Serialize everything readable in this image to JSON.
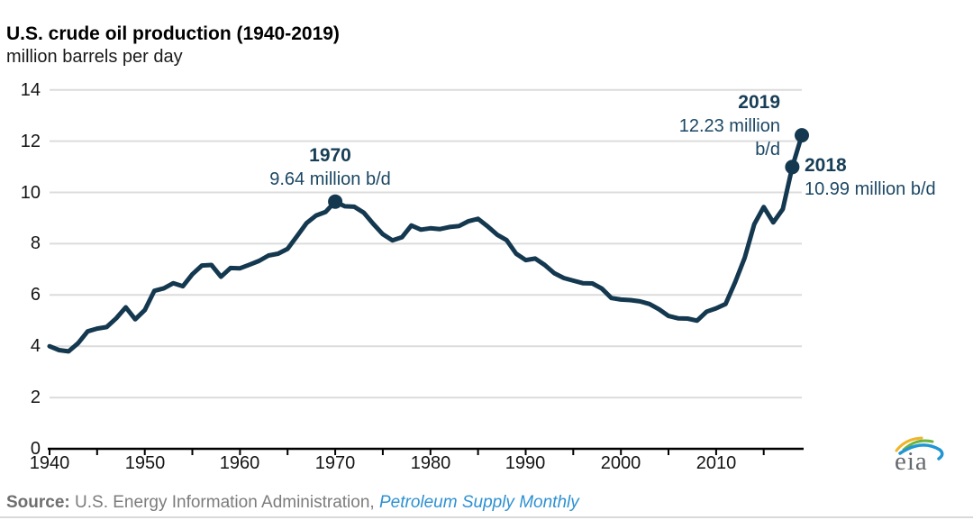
{
  "header": {
    "title": "U.S. crude oil production (1940-2019)",
    "subtitle": "million barrels per day"
  },
  "colors": {
    "line": "#14384F",
    "grid": "#dcdcdc",
    "axis": "#000000",
    "annotation_year": "#173E56",
    "annotation_value": "#1B4764",
    "source_gray": "#7c7c7c",
    "link_blue": "#2E91D2",
    "logo_yellow": "#F0B428",
    "logo_green": "#6CB33F",
    "logo_blue": "#2196D3"
  },
  "chart_data": {
    "type": "line",
    "title": "U.S. crude oil production (1940-2019)",
    "xlabel": "",
    "ylabel": "million barrels per day",
    "xlim": [
      1940,
      2019
    ],
    "ylim": [
      0,
      14
    ],
    "grid": "horizontal",
    "legend": "none",
    "y_ticks": [
      0,
      2,
      4,
      6,
      8,
      10,
      12,
      14
    ],
    "x_tick_labels": [
      1940,
      1950,
      1960,
      1970,
      1980,
      1990,
      2000,
      2010
    ],
    "x_tick_marks": [
      1940,
      1945,
      1950,
      1955,
      1960,
      1965,
      1970,
      1975,
      1980,
      1985,
      1990,
      1995,
      2000,
      2005,
      2010,
      2015
    ],
    "series_name": "U.S. crude oil production (million barrels per day)",
    "years": [
      1940,
      1941,
      1942,
      1943,
      1944,
      1945,
      1946,
      1947,
      1948,
      1949,
      1950,
      1951,
      1952,
      1953,
      1954,
      1955,
      1956,
      1957,
      1958,
      1959,
      1960,
      1961,
      1962,
      1963,
      1964,
      1965,
      1966,
      1967,
      1968,
      1969,
      1970,
      1971,
      1972,
      1973,
      1974,
      1975,
      1976,
      1977,
      1978,
      1979,
      1980,
      1981,
      1982,
      1983,
      1984,
      1985,
      1986,
      1987,
      1988,
      1989,
      1990,
      1991,
      1992,
      1993,
      1994,
      1995,
      1996,
      1997,
      1998,
      1999,
      2000,
      2001,
      2002,
      2003,
      2004,
      2005,
      2006,
      2007,
      2008,
      2009,
      2010,
      2011,
      2012,
      2013,
      2014,
      2015,
      2016,
      2017,
      2018,
      2019
    ],
    "values": [
      4.0,
      3.85,
      3.8,
      4.12,
      4.58,
      4.69,
      4.75,
      5.09,
      5.52,
      5.05,
      5.41,
      6.16,
      6.26,
      6.46,
      6.34,
      6.81,
      7.15,
      7.17,
      6.71,
      7.05,
      7.04,
      7.18,
      7.33,
      7.54,
      7.61,
      7.8,
      8.3,
      8.81,
      9.1,
      9.24,
      9.64,
      9.46,
      9.44,
      9.21,
      8.77,
      8.37,
      8.13,
      8.25,
      8.71,
      8.55,
      8.6,
      8.57,
      8.65,
      8.69,
      8.88,
      8.97,
      8.68,
      8.35,
      8.14,
      7.61,
      7.36,
      7.42,
      7.17,
      6.85,
      6.66,
      6.56,
      6.46,
      6.45,
      6.25,
      5.88,
      5.82,
      5.8,
      5.75,
      5.65,
      5.44,
      5.18,
      5.09,
      5.08,
      5.0,
      5.35,
      5.48,
      5.65,
      6.5,
      7.45,
      8.76,
      9.43,
      8.83,
      9.35,
      10.99,
      12.23
    ],
    "marker_years": [
      1970,
      2018,
      2019
    ],
    "annotations": [
      {
        "year": 1970,
        "value": 9.64,
        "lines": [
          "1970",
          "9.64 million b/d"
        ]
      },
      {
        "year": 2019,
        "value": 12.23,
        "lines": [
          "2019",
          "12.23 million",
          "b/d"
        ]
      },
      {
        "year": 2018,
        "value": 10.99,
        "lines": [
          "2018",
          "10.99 million b/d"
        ]
      }
    ]
  },
  "source": {
    "label": "Source:",
    "text": " U.S. Energy Information Administration, ",
    "link": "Petroleum Supply Monthly"
  },
  "logo": {
    "text": "eia"
  }
}
